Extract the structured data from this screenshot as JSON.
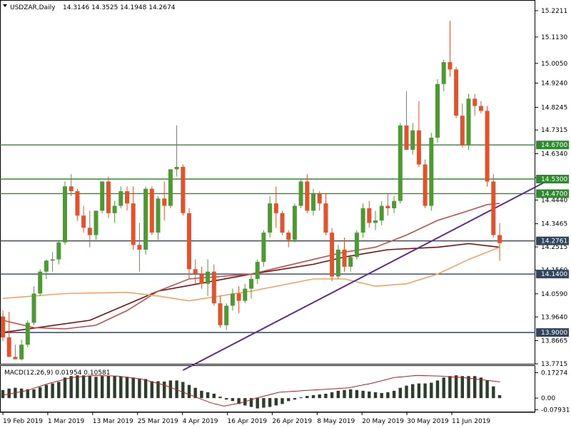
{
  "window": {
    "title": "USDZAR,Daily",
    "ohlc_readout": "14.3146 14.3525 14.1948 14.2674",
    "macd_title": "MACD(12,26,9) 0.01954 0.10581"
  },
  "chart_data": [
    {
      "type": "candlestick",
      "title": "USDZAR,Daily",
      "ylim": [
        13.7715,
        15.2211
      ],
      "y_ticks": [
        "15.2211",
        "15.1130",
        "15.0050",
        "14.9240",
        "14.8245",
        "14.7315",
        "14.6340",
        "14.5345",
        "14.4440",
        "14.3465",
        "14.2515",
        "14.1560",
        "14.0590",
        "13.9640",
        "13.8665",
        "13.7715"
      ],
      "x_ticks": [
        "19 Feb 2019",
        "1 Mar 2019",
        "13 Mar 2019",
        "25 Mar 2019",
        "4 Apr 2019",
        "16 Apr 2019",
        "26 Apr 2019",
        "8 May 2019",
        "20 May 2019",
        "30 May 2019",
        "11 Jun 2019"
      ],
      "up_color": "#4e9a32",
      "down_color": "#e4522c",
      "series": [
        {
          "name": "candles",
          "ohlc": [
            [
              13.966,
              13.99,
              13.865,
              13.88
            ],
            [
              13.88,
              13.985,
              13.8,
              13.8
            ],
            [
              13.8,
              13.85,
              13.79,
              13.79
            ],
            [
              13.79,
              13.87,
              13.785,
              13.85
            ],
            [
              13.85,
              13.95,
              13.84,
              13.94
            ],
            [
              13.94,
              14.09,
              13.93,
              14.06
            ],
            [
              14.06,
              14.16,
              14.05,
              14.15
            ],
            [
              14.15,
              14.2,
              14.12,
              14.195
            ],
            [
              14.195,
              14.23,
              14.15,
              14.2
            ],
            [
              14.2,
              14.28,
              14.18,
              14.27
            ],
            [
              14.27,
              14.52,
              14.26,
              14.5
            ],
            [
              14.5,
              14.55,
              14.46,
              14.48
            ],
            [
              14.48,
              14.49,
              14.36,
              14.38
            ],
            [
              14.38,
              14.42,
              14.31,
              14.33
            ],
            [
              14.33,
              14.4,
              14.25,
              14.3
            ],
            [
              14.3,
              14.4,
              14.28,
              14.4
            ],
            [
              14.4,
              14.52,
              14.39,
              14.52
            ],
            [
              14.52,
              14.54,
              14.37,
              14.39
            ],
            [
              14.39,
              14.44,
              14.35,
              14.42
            ],
            [
              14.42,
              14.5,
              14.41,
              14.48
            ],
            [
              14.48,
              14.5,
              14.4,
              14.43
            ],
            [
              14.43,
              14.5,
              14.24,
              14.26
            ],
            [
              14.26,
              14.35,
              14.15,
              14.24
            ],
            [
              14.24,
              14.5,
              14.22,
              14.49
            ],
            [
              14.49,
              14.5,
              14.3,
              14.31
            ],
            [
              14.31,
              14.46,
              14.28,
              14.45
            ],
            [
              14.45,
              14.52,
              14.36,
              14.42
            ],
            [
              14.42,
              14.57,
              14.41,
              14.57
            ],
            [
              14.57,
              14.75,
              14.54,
              14.58
            ],
            [
              14.58,
              14.59,
              14.38,
              14.39
            ],
            [
              14.39,
              14.41,
              14.12,
              14.16
            ],
            [
              14.16,
              14.2,
              14.1,
              14.14
            ],
            [
              14.14,
              14.17,
              14.08,
              14.1
            ],
            [
              14.1,
              14.2,
              14.05,
              14.15
            ],
            [
              14.15,
              14.18,
              14.01,
              14.02
            ],
            [
              14.02,
              14.05,
              13.92,
              13.93
            ],
            [
              13.93,
              14.02,
              13.91,
              14.01
            ],
            [
              14.01,
              14.08,
              13.99,
              14.06
            ],
            [
              14.06,
              14.09,
              13.98,
              14.03
            ],
            [
              14.03,
              14.1,
              14.02,
              14.08
            ],
            [
              14.08,
              14.14,
              14.04,
              14.12
            ],
            [
              14.12,
              14.2,
              14.1,
              14.19
            ],
            [
              14.19,
              14.32,
              14.17,
              14.31
            ],
            [
              14.31,
              14.46,
              14.29,
              14.43
            ],
            [
              14.43,
              14.5,
              14.33,
              14.39
            ],
            [
              14.39,
              14.4,
              14.3,
              14.31
            ],
            [
              14.31,
              14.32,
              14.25,
              14.28
            ],
            [
              14.28,
              14.43,
              14.27,
              14.42
            ],
            [
              14.42,
              14.53,
              14.41,
              14.52
            ],
            [
              14.52,
              14.55,
              14.39,
              14.4
            ],
            [
              14.4,
              14.49,
              14.38,
              14.47
            ],
            [
              14.47,
              14.48,
              14.4,
              14.43
            ],
            [
              14.43,
              14.47,
              14.3,
              14.31
            ],
            [
              14.31,
              14.33,
              14.11,
              14.13
            ],
            [
              14.13,
              14.26,
              14.12,
              14.24
            ],
            [
              14.24,
              14.29,
              14.15,
              14.17
            ],
            [
              14.17,
              14.22,
              14.15,
              14.21
            ],
            [
              14.21,
              14.32,
              14.2,
              14.31
            ],
            [
              14.31,
              14.43,
              14.29,
              14.41
            ],
            [
              14.41,
              14.44,
              14.33,
              14.35
            ],
            [
              14.35,
              14.4,
              14.32,
              14.36
            ],
            [
              14.36,
              14.44,
              14.34,
              14.42
            ],
            [
              14.42,
              14.47,
              14.38,
              14.41
            ],
            [
              14.41,
              14.46,
              14.39,
              14.44
            ],
            [
              14.44,
              14.76,
              14.43,
              14.75
            ],
            [
              14.75,
              14.89,
              14.65,
              14.65
            ],
            [
              14.65,
              14.76,
              14.63,
              14.73
            ],
            [
              14.73,
              14.85,
              14.58,
              14.59
            ],
            [
              14.59,
              14.61,
              14.41,
              14.42
            ],
            [
              14.42,
              14.72,
              14.4,
              14.7
            ],
            [
              14.7,
              14.94,
              14.68,
              14.92
            ],
            [
              14.92,
              15.02,
              14.89,
              15.01
            ],
            [
              15.01,
              15.18,
              14.95,
              14.98
            ],
            [
              14.98,
              14.99,
              14.78,
              14.79
            ],
            [
              14.79,
              14.84,
              14.66,
              14.67
            ],
            [
              14.67,
              14.88,
              14.65,
              14.86
            ],
            [
              14.86,
              14.88,
              14.79,
              14.83
            ],
            [
              14.83,
              14.85,
              14.8,
              14.81
            ],
            [
              14.81,
              14.83,
              14.5,
              14.52
            ],
            [
              14.52,
              14.55,
              14.29,
              14.3
            ],
            [
              14.3,
              14.35,
              14.195,
              14.267
            ]
          ]
        },
        {
          "name": "MA-200",
          "color": "#7d0e0e",
          "values": [
            [
              0,
              13.9
            ],
            [
              14,
              13.95
            ],
            [
              25,
              14.07
            ],
            [
              40,
              14.14
            ],
            [
              50,
              14.18
            ],
            [
              55,
              14.21
            ],
            [
              62,
              14.24
            ],
            [
              70,
              14.25
            ],
            [
              75,
              14.265
            ],
            [
              80,
              14.25
            ]
          ]
        },
        {
          "name": "MA-50",
          "color": "#c0504d",
          "values": [
            [
              0,
              13.95
            ],
            [
              5,
              13.92
            ],
            [
              10,
              13.915
            ],
            [
              15,
              13.93
            ],
            [
              20,
              13.99
            ],
            [
              25,
              14.07
            ],
            [
              30,
              14.12
            ],
            [
              40,
              14.14
            ],
            [
              50,
              14.2
            ],
            [
              55,
              14.23
            ],
            [
              60,
              14.25
            ],
            [
              65,
              14.3
            ],
            [
              70,
              14.36
            ],
            [
              75,
              14.4
            ],
            [
              78,
              14.425
            ],
            [
              80,
              14.43
            ]
          ]
        },
        {
          "name": "MA-100",
          "color": "#f4a460",
          "values": [
            [
              0,
              14.04
            ],
            [
              10,
              14.06
            ],
            [
              20,
              14.065
            ],
            [
              25,
              14.05
            ],
            [
              30,
              14.03
            ],
            [
              40,
              14.07
            ],
            [
              50,
              14.12
            ],
            [
              55,
              14.12
            ],
            [
              60,
              14.09
            ],
            [
              65,
              14.1
            ],
            [
              70,
              14.14
            ],
            [
              75,
              14.2
            ],
            [
              80,
              14.25
            ]
          ]
        },
        {
          "name": "trendline",
          "color": "#5b2c91",
          "values": [
            [
              29,
              13.745
            ],
            [
              89,
              14.54
            ]
          ]
        }
      ],
      "horizontal_levels": [
        {
          "value": 14.67,
          "label": "14.6700",
          "color": "#2f8a2f"
        },
        {
          "value": 14.53,
          "label": "14.5300",
          "color": "#2f8a2f"
        },
        {
          "value": 14.47,
          "label": "14.4700",
          "color": "#2f8a2f"
        },
        {
          "value": 14.2761,
          "label": "14.2761",
          "color": "#30465e"
        },
        {
          "value": 14.14,
          "label": "14.1400",
          "color": "#30465e"
        },
        {
          "value": 13.9,
          "label": "13.9000",
          "color": "#30465e"
        }
      ]
    },
    {
      "type": "bar",
      "title": "MACD(12,26,9) 0.01954 0.10581",
      "ylim": [
        -0.082,
        0.185
      ],
      "y_ticks": [
        "0.17274",
        "0.00",
        "-0.07931"
      ],
      "bar_color": "#2c3d2c",
      "signal_color": "#b22222",
      "series": [
        {
          "name": "MACD",
          "values": [
            0.055,
            0.065,
            0.07,
            0.065,
            0.06,
            0.06,
            0.075,
            0.09,
            0.1,
            0.11,
            0.14,
            0.15,
            0.155,
            0.155,
            0.15,
            0.145,
            0.15,
            0.15,
            0.15,
            0.148,
            0.145,
            0.14,
            0.13,
            0.13,
            0.115,
            0.115,
            0.113,
            0.12,
            0.12,
            0.11,
            0.09,
            0.07,
            0.05,
            0.04,
            0.03,
            0.01,
            -0.01,
            -0.02,
            -0.04,
            -0.05,
            -0.06,
            -0.07,
            -0.065,
            -0.06,
            -0.05,
            -0.04,
            -0.02,
            -0.01,
            0.005,
            0.015,
            0.02,
            0.025,
            0.03,
            0.04,
            0.05,
            0.055,
            0.06,
            0.055,
            0.05,
            0.045,
            0.04,
            0.035,
            0.04,
            0.05,
            0.07,
            0.085,
            0.095,
            0.1,
            0.1,
            0.105,
            0.12,
            0.14,
            0.15,
            0.155,
            0.15,
            0.15,
            0.15,
            0.14,
            0.12,
            0.08,
            0.02
          ]
        },
        {
          "name": "Signal",
          "values": [
            [
              0,
              0.02
            ],
            [
              5,
              0.05
            ],
            [
              10,
              0.1
            ],
            [
              15,
              0.14
            ],
            [
              20,
              0.155
            ],
            [
              25,
              0.15
            ],
            [
              30,
              0.13
            ],
            [
              35,
              0.09
            ],
            [
              40,
              0.03
            ],
            [
              45,
              -0.03
            ],
            [
              48,
              -0.055
            ],
            [
              52,
              -0.03
            ],
            [
              55,
              0.0
            ],
            [
              60,
              0.04
            ],
            [
              65,
              0.05
            ],
            [
              70,
              0.06
            ],
            [
              75,
              0.07
            ],
            [
              80,
              0.1
            ],
            [
              85,
              0.14
            ],
            [
              90,
              0.155
            ],
            [
              95,
              0.15
            ],
            [
              100,
              0.14
            ],
            [
              108,
              0.11
            ]
          ]
        }
      ]
    }
  ]
}
